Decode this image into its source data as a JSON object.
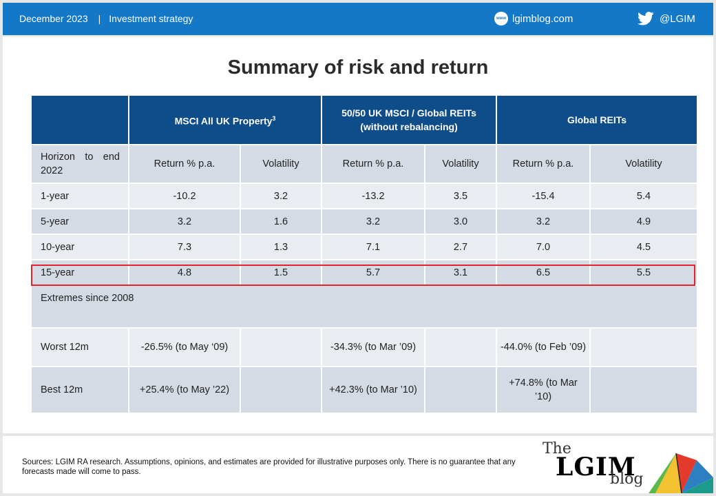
{
  "header": {
    "date": "December 2023",
    "separator": "|",
    "section": "Investment strategy",
    "site_icon": "www",
    "site": "lgimblog.com",
    "twitter_handle": "@LGIM"
  },
  "title": "Summary of risk and return",
  "table": {
    "groups": [
      {
        "label": "MSCI All UK Property",
        "sup": "3"
      },
      {
        "label": "50/50 UK MSCI / Global REITs",
        "sub": "(without rebalancing)"
      },
      {
        "label": "Global REITs"
      }
    ],
    "subheader": [
      "Horizon to end 2022",
      "Return % p.a.",
      "Volatility",
      "Return % p.a.",
      "Volatility",
      "Return % p.a.",
      "Volatility"
    ],
    "rows": [
      [
        "1-year",
        "-10.2",
        "3.2",
        "-13.2",
        "3.5",
        "-15.4",
        "5.4"
      ],
      [
        "5-year",
        "3.2",
        "1.6",
        "3.2",
        "3.0",
        "3.2",
        "4.9"
      ],
      [
        "10-year",
        "7.3",
        "1.3",
        "7.1",
        "2.7",
        "7.0",
        "4.5"
      ],
      [
        "15-year",
        "4.8",
        "1.5",
        "5.7",
        "3.1",
        "6.5",
        "5.5"
      ]
    ],
    "extremes_label": "Extremes since 2008",
    "worst": [
      "Worst 12m",
      "-26.5% (to May ‘09)",
      "",
      "-34.3% (to Mar ’09)",
      "",
      "-44.0% (to Feb ’09)",
      ""
    ],
    "best": [
      "Best 12m",
      "+25.4% (to May ’22)",
      "",
      "+42.3% (to Mar ’10)",
      "",
      "+74.8% (to Mar ’10)",
      ""
    ]
  },
  "footer": {
    "sources": "Sources: LGIM RA research. Assumptions, opinions, and estimates are provided for illustrative purposes only. There is no guarantee that any forecasts made will come to pass.",
    "logo_the": "The",
    "logo_lgim": "LGIM",
    "logo_blog": "blog"
  },
  "colors": {
    "header_blue": "#1478c8",
    "table_header": "#0e4c8a",
    "highlight": "#e0242b"
  }
}
